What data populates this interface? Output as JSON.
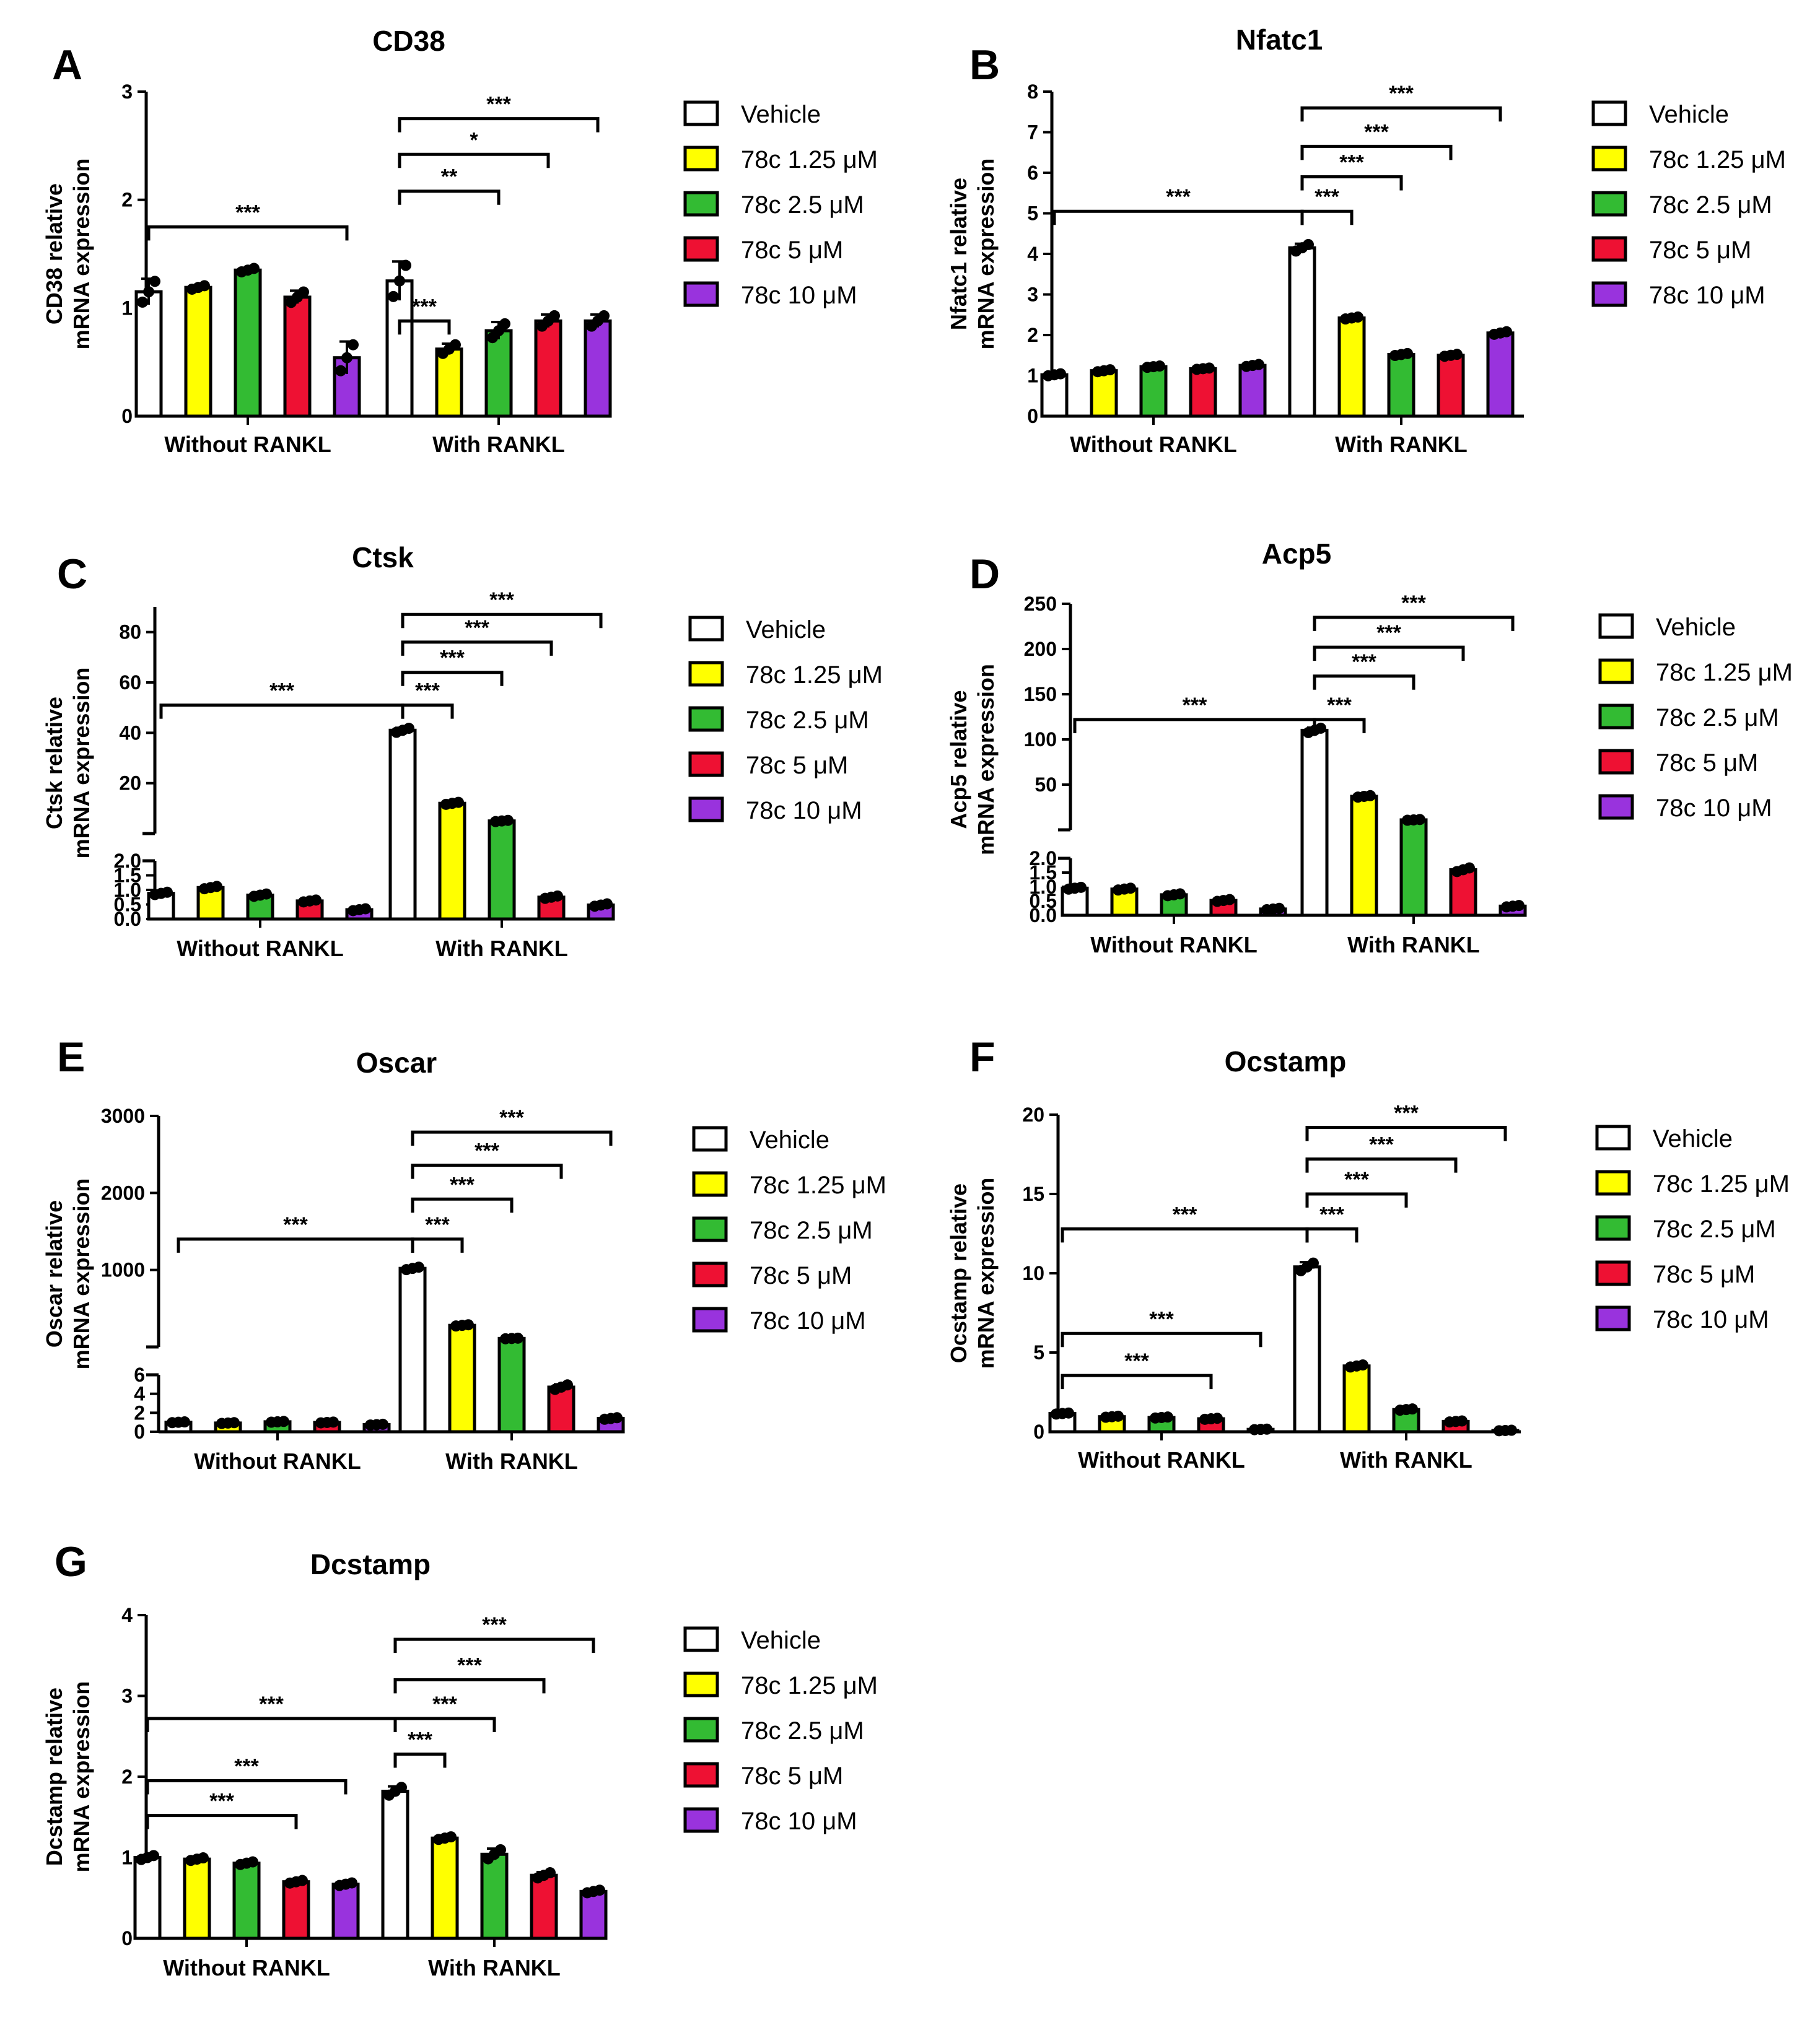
{
  "legend": [
    "Vehicle",
    "78c 1.25 μM",
    "78c 2.5 μM",
    "78c 5 μM",
    "78c 10 μM"
  ],
  "colors": [
    "#ffffff",
    "#ffff00",
    "#33bb33",
    "#ee1133",
    "#9933dd"
  ],
  "groups": [
    "Without RANKL",
    "With RANKL"
  ],
  "chart_data": [
    {
      "id": "A",
      "type": "bar",
      "title": "CD38",
      "ylabel": [
        "CD38 relative",
        "mRNA expression"
      ],
      "categories": [
        "Without RANKL",
        "With RANKL"
      ],
      "series": [
        {
          "name": "Vehicle",
          "values": [
            1.15,
            1.25
          ],
          "errors": [
            0.12,
            0.18
          ]
        },
        {
          "name": "78c 1.25 μM",
          "values": [
            1.19,
            0.62
          ],
          "errors": [
            0.02,
            0.05
          ]
        },
        {
          "name": "78c 2.5 μM",
          "values": [
            1.35,
            0.79
          ],
          "errors": [
            0.02,
            0.08
          ]
        },
        {
          "name": "78c 5 μM",
          "values": [
            1.1,
            0.88
          ],
          "errors": [
            0.06,
            0.06
          ]
        },
        {
          "name": "78c 10 μM",
          "values": [
            0.54,
            0.88
          ],
          "errors": [
            0.15,
            0.06
          ]
        }
      ],
      "ylim": [
        0,
        3
      ],
      "yticks": [
        0,
        1,
        2,
        3
      ],
      "significance": [
        {
          "from": [
            0,
            0
          ],
          "to": [
            0,
            4
          ],
          "label": "***",
          "y": 1.75
        },
        {
          "from": [
            1,
            0
          ],
          "to": [
            1,
            1
          ],
          "label": "***",
          "y": 0.88
        },
        {
          "from": [
            1,
            0
          ],
          "to": [
            1,
            2
          ],
          "label": "**",
          "y": 2.08
        },
        {
          "from": [
            1,
            0
          ],
          "to": [
            1,
            3
          ],
          "label": "*",
          "y": 2.42
        },
        {
          "from": [
            1,
            0
          ],
          "to": [
            1,
            4
          ],
          "label": "***",
          "y": 2.75
        }
      ]
    },
    {
      "id": "B",
      "type": "bar",
      "title": "Nfatc1",
      "ylabel": [
        "Nfatc1 relative",
        "mRNA expression"
      ],
      "categories": [
        "Without RANKL",
        "With RANKL"
      ],
      "series": [
        {
          "name": "Vehicle",
          "values": [
            1.02,
            4.15
          ],
          "errors": [
            0.03,
            0.1
          ]
        },
        {
          "name": "78c 1.25 μM",
          "values": [
            1.12,
            2.42
          ],
          "errors": [
            0.03,
            0.03
          ]
        },
        {
          "name": "78c 2.5 μM",
          "values": [
            1.22,
            1.52
          ],
          "errors": [
            0.02,
            0.03
          ]
        },
        {
          "name": "78c 5 μM",
          "values": [
            1.17,
            1.5
          ],
          "errors": [
            0.02,
            0.03
          ]
        },
        {
          "name": "78c 10 μM",
          "values": [
            1.25,
            2.05
          ],
          "errors": [
            0.03,
            0.04
          ]
        }
      ],
      "ylim": [
        0,
        8
      ],
      "yticks": [
        0,
        1,
        2,
        3,
        4,
        5,
        6,
        7,
        8
      ],
      "significance": [
        {
          "from": [
            0,
            0
          ],
          "to": [
            1,
            0
          ],
          "label": "***",
          "y": 5.05
        },
        {
          "from": [
            1,
            0
          ],
          "to": [
            1,
            1
          ],
          "label": "***",
          "y": 5.05
        },
        {
          "from": [
            1,
            0
          ],
          "to": [
            1,
            2
          ],
          "label": "***",
          "y": 5.9
        },
        {
          "from": [
            1,
            0
          ],
          "to": [
            1,
            3
          ],
          "label": "***",
          "y": 6.65
        },
        {
          "from": [
            1,
            0
          ],
          "to": [
            1,
            4
          ],
          "label": "***",
          "y": 7.6
        }
      ]
    },
    {
      "id": "C",
      "type": "bar",
      "title": "Ctsk",
      "ylabel": [
        "Ctsk relative",
        "mRNA expression"
      ],
      "categories": [
        "Without RANKL",
        "With RANKL"
      ],
      "series": [
        {
          "name": "Vehicle",
          "values": [
            0.88,
            41
          ],
          "errors": [
            0.05,
            1.0
          ]
        },
        {
          "name": "78c 1.25 μM",
          "values": [
            1.08,
            12
          ],
          "errors": [
            0.05,
            0.5
          ]
        },
        {
          "name": "78c 2.5 μM",
          "values": [
            0.82,
            5
          ],
          "errors": [
            0.05,
            0.3
          ]
        },
        {
          "name": "78c 5 μM",
          "values": [
            0.62,
            0.75
          ],
          "errors": [
            0.04,
            0.05
          ]
        },
        {
          "name": "78c 10 μM",
          "values": [
            0.32,
            0.48
          ],
          "errors": [
            0.04,
            0.05
          ]
        }
      ],
      "axis_break": {
        "lower": [
          0,
          2
        ],
        "lower_ticks": [
          "0.0",
          "0.5",
          "1.0",
          "1.5",
          "2.0"
        ],
        "upper": [
          0,
          90
        ],
        "upper_ticks": [
          20,
          40,
          60,
          80
        ]
      },
      "significance": [
        {
          "from": [
            0,
            0
          ],
          "to": [
            1,
            0
          ],
          "label": "***",
          "y": 51
        },
        {
          "from": [
            1,
            0
          ],
          "to": [
            1,
            1
          ],
          "label": "***",
          "y": 51
        },
        {
          "from": [
            1,
            0
          ],
          "to": [
            1,
            2
          ],
          "label": "***",
          "y": 64
        },
        {
          "from": [
            1,
            0
          ],
          "to": [
            1,
            3
          ],
          "label": "***",
          "y": 76
        },
        {
          "from": [
            1,
            0
          ],
          "to": [
            1,
            4
          ],
          "label": "***",
          "y": 87
        }
      ]
    },
    {
      "id": "D",
      "type": "bar",
      "title": "Acp5",
      "ylabel": [
        "Acp5 relative",
        "mRNA expression"
      ],
      "categories": [
        "Without RANKL",
        "With RANKL"
      ],
      "series": [
        {
          "name": "Vehicle",
          "values": [
            0.95,
            110
          ],
          "errors": [
            0.04,
            3
          ]
        },
        {
          "name": "78c 1.25 μM",
          "values": [
            0.92,
            37
          ],
          "errors": [
            0.04,
            1
          ]
        },
        {
          "name": "78c 2.5 μM",
          "values": [
            0.72,
            11
          ],
          "errors": [
            0.04,
            0.5
          ]
        },
        {
          "name": "78c 5 μM",
          "values": [
            0.52,
            1.6
          ],
          "errors": [
            0.04,
            0.08
          ]
        },
        {
          "name": "78c 10 μM",
          "values": [
            0.22,
            0.32
          ],
          "errors": [
            0.03,
            0.03
          ]
        }
      ],
      "axis_break": {
        "lower": [
          0,
          2
        ],
        "lower_ticks": [
          "0.0",
          "0.5",
          "1.0",
          "1.5",
          "2.0"
        ],
        "upper": [
          0,
          250
        ],
        "upper_ticks": [
          50,
          100,
          150,
          200,
          250
        ]
      },
      "significance": [
        {
          "from": [
            0,
            0
          ],
          "to": [
            1,
            0
          ],
          "label": "***",
          "y": 122
        },
        {
          "from": [
            1,
            0
          ],
          "to": [
            1,
            1
          ],
          "label": "***",
          "y": 122
        },
        {
          "from": [
            1,
            0
          ],
          "to": [
            1,
            2
          ],
          "label": "***",
          "y": 170
        },
        {
          "from": [
            1,
            0
          ],
          "to": [
            1,
            3
          ],
          "label": "***",
          "y": 202
        },
        {
          "from": [
            1,
            0
          ],
          "to": [
            1,
            4
          ],
          "label": "***",
          "y": 235
        }
      ]
    },
    {
      "id": "E",
      "type": "bar",
      "title": "Oscar",
      "ylabel": [
        "Oscar relative",
        "mRNA expression"
      ],
      "categories": [
        "Without RANKL",
        "With RANKL"
      ],
      "series": [
        {
          "name": "Vehicle",
          "values": [
            1.0,
            1020
          ],
          "errors": [
            0.05,
            20
          ]
        },
        {
          "name": "78c 1.25 μM",
          "values": [
            0.92,
            280
          ],
          "errors": [
            0.05,
            10
          ]
        },
        {
          "name": "78c 2.5 μM",
          "values": [
            1.05,
            110
          ],
          "errors": [
            0.05,
            5
          ]
        },
        {
          "name": "78c 5 μM",
          "values": [
            0.98,
            4.7
          ],
          "errors": [
            0.05,
            0.3
          ]
        },
        {
          "name": "78c 10 μM",
          "values": [
            0.75,
            1.4
          ],
          "errors": [
            0.05,
            0.1
          ]
        }
      ],
      "axis_break": {
        "lower": [
          0,
          6
        ],
        "lower_ticks": [
          "0",
          "2",
          "4",
          "6"
        ],
        "upper": [
          0,
          3000
        ],
        "upper_ticks": [
          1000,
          2000,
          3000
        ]
      },
      "significance": [
        {
          "from": [
            0,
            0
          ],
          "to": [
            1,
            0
          ],
          "label": "***",
          "y": 1400
        },
        {
          "from": [
            1,
            0
          ],
          "to": [
            1,
            1
          ],
          "label": "***",
          "y": 1400
        },
        {
          "from": [
            1,
            0
          ],
          "to": [
            1,
            2
          ],
          "label": "***",
          "y": 1920
        },
        {
          "from": [
            1,
            0
          ],
          "to": [
            1,
            3
          ],
          "label": "***",
          "y": 2360
        },
        {
          "from": [
            1,
            0
          ],
          "to": [
            1,
            4
          ],
          "label": "***",
          "y": 2790
        }
      ]
    },
    {
      "id": "F",
      "type": "bar",
      "title": "Ocstamp",
      "ylabel": [
        "Ocstamp relative",
        "mRNA expression"
      ],
      "categories": [
        "Without RANKL",
        "With RANKL"
      ],
      "series": [
        {
          "name": "Vehicle",
          "values": [
            1.15,
            10.4
          ],
          "errors": [
            0.04,
            0.3
          ]
        },
        {
          "name": "78c 1.25 μM",
          "values": [
            0.95,
            4.15
          ],
          "errors": [
            0.04,
            0.08
          ]
        },
        {
          "name": "78c 2.5 μM",
          "values": [
            0.9,
            1.4
          ],
          "errors": [
            0.04,
            0.05
          ]
        },
        {
          "name": "78c 5 μM",
          "values": [
            0.82,
            0.65
          ],
          "errors": [
            0.04,
            0.04
          ]
        },
        {
          "name": "78c 10 μM",
          "values": [
            0.15,
            0.08
          ],
          "errors": [
            0.02,
            0.02
          ]
        }
      ],
      "ylim": [
        0,
        20
      ],
      "yticks": [
        0,
        5,
        10,
        15,
        20
      ],
      "significance": [
        {
          "from": [
            0,
            0
          ],
          "to": [
            0,
            3
          ],
          "label": "***",
          "y": 3.55
        },
        {
          "from": [
            0,
            0
          ],
          "to": [
            0,
            4
          ],
          "label": "***",
          "y": 6.2
        },
        {
          "from": [
            0,
            0
          ],
          "to": [
            1,
            0
          ],
          "label": "***",
          "y": 12.8
        },
        {
          "from": [
            1,
            0
          ],
          "to": [
            1,
            1
          ],
          "label": "***",
          "y": 12.8
        },
        {
          "from": [
            1,
            0
          ],
          "to": [
            1,
            2
          ],
          "label": "***",
          "y": 15.0
        },
        {
          "from": [
            1,
            0
          ],
          "to": [
            1,
            3
          ],
          "label": "***",
          "y": 17.2
        },
        {
          "from": [
            1,
            0
          ],
          "to": [
            1,
            4
          ],
          "label": "***",
          "y": 19.2
        }
      ]
    },
    {
      "id": "G",
      "type": "bar",
      "title": "Dcstamp",
      "ylabel": [
        "Dcstamp relative",
        "mRNA expression"
      ],
      "categories": [
        "Without RANKL",
        "With RANKL"
      ],
      "series": [
        {
          "name": "Vehicle",
          "values": [
            1.0,
            1.82
          ],
          "errors": [
            0.03,
            0.06
          ]
        },
        {
          "name": "78c 1.25 μM",
          "values": [
            0.98,
            1.24
          ],
          "errors": [
            0.02,
            0.02
          ]
        },
        {
          "name": "78c 2.5 μM",
          "values": [
            0.93,
            1.04
          ],
          "errors": [
            0.02,
            0.07
          ]
        },
        {
          "name": "78c 5 μM",
          "values": [
            0.7,
            0.78
          ],
          "errors": [
            0.02,
            0.04
          ]
        },
        {
          "name": "78c 10 μM",
          "values": [
            0.67,
            0.58
          ],
          "errors": [
            0.02,
            0.02
          ]
        }
      ],
      "ylim": [
        0,
        4
      ],
      "yticks": [
        0,
        1,
        2,
        3,
        4
      ],
      "significance": [
        {
          "from": [
            0,
            0
          ],
          "to": [
            0,
            3
          ],
          "label": "***",
          "y": 1.52
        },
        {
          "from": [
            0,
            0
          ],
          "to": [
            0,
            4
          ],
          "label": "***",
          "y": 1.95
        },
        {
          "from": [
            0,
            0
          ],
          "to": [
            1,
            0
          ],
          "label": "***",
          "y": 2.72
        },
        {
          "from": [
            1,
            0
          ],
          "to": [
            1,
            1
          ],
          "label": "***",
          "y": 2.28
        },
        {
          "from": [
            1,
            0
          ],
          "to": [
            1,
            2
          ],
          "label": "***",
          "y": 2.72
        },
        {
          "from": [
            1,
            0
          ],
          "to": [
            1,
            3
          ],
          "label": "***",
          "y": 3.2
        },
        {
          "from": [
            1,
            0
          ],
          "to": [
            1,
            4
          ],
          "label": "***",
          "y": 3.7
        }
      ]
    }
  ]
}
